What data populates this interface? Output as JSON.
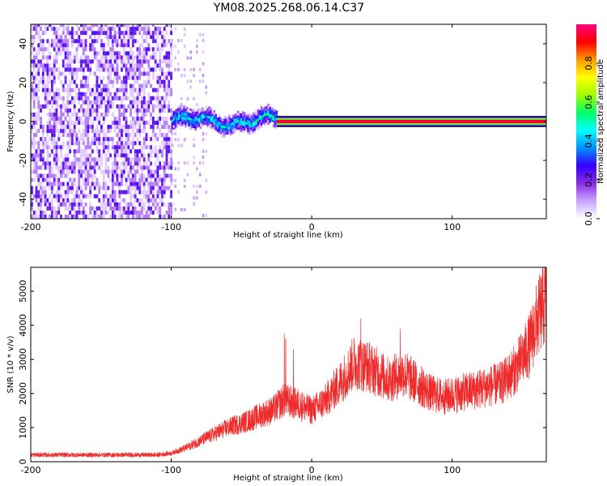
{
  "figure": {
    "title": "YM08.2025.268.06.14.C37"
  },
  "chart_data": [
    {
      "type": "heatmap",
      "panel": "spectrogram",
      "xlabel": "Height of straight line (km)",
      "ylabel": "Frequency (Hz)",
      "xlim": [
        -200,
        167
      ],
      "ylim": [
        -50,
        50
      ],
      "x_ticks": [
        "-200",
        "-100",
        "0",
        "100"
      ],
      "x_tick_values": [
        -200,
        -100,
        0,
        100
      ],
      "y_ticks": [
        "-40",
        "-20",
        "0",
        "20",
        "40"
      ],
      "y_tick_values": [
        -40,
        -20,
        0,
        20,
        40
      ],
      "colorbar": {
        "label": "Normalized spectral amplitude",
        "range": [
          0,
          1
        ],
        "ticks": [
          "0.0",
          "0.2",
          "0.4",
          "0.6",
          "0.8"
        ],
        "tick_values": [
          0.0,
          0.2,
          0.4,
          0.6,
          0.8
        ],
        "colormap": [
          "#ffffff",
          "#c9a6ff",
          "#8a2be2",
          "#3300ff",
          "#0090ff",
          "#00ffff",
          "#00ff66",
          "#a0ff00",
          "#ffff00",
          "#ff9900",
          "#ff0000",
          "#ff0080"
        ]
      },
      "regions": [
        {
          "name": "noise",
          "x": [
            -200,
            -100
          ],
          "amplitude": 0.2
        },
        {
          "name": "sparse",
          "x": [
            -100,
            -75
          ],
          "amplitude": 0.08
        },
        {
          "name": "wavy-signal",
          "x": [
            -100,
            -25
          ],
          "freq_center": 2,
          "amplitude": 0.35
        },
        {
          "name": "tone",
          "x": [
            -25,
            167
          ],
          "freq": 0,
          "amplitude": 0.95
        }
      ]
    },
    {
      "type": "line",
      "panel": "snr",
      "xlabel": "Height of straight line (km)",
      "ylabel": "SNR (10 * v/v)",
      "xlim": [
        -200,
        167
      ],
      "ylim": [
        0,
        5700
      ],
      "x_ticks": [
        "-200",
        "-100",
        "0",
        "100"
      ],
      "x_tick_values": [
        -200,
        -100,
        0,
        100
      ],
      "y_ticks": [
        "0",
        "1000",
        "2000",
        "3000",
        "4000",
        "5000"
      ],
      "y_tick_values": [
        0,
        1000,
        2000,
        3000,
        4000,
        5000
      ],
      "color": "#ee2c2c",
      "trend": {
        "x": [
          -200,
          -160,
          -110,
          -100,
          -90,
          -75,
          -60,
          -45,
          -35,
          -28,
          -20,
          -10,
          0,
          10,
          20,
          30,
          40,
          55,
          65,
          75,
          85,
          95,
          105,
          115,
          125,
          135,
          145,
          155,
          160,
          167
        ],
        "y": [
          200,
          200,
          200,
          250,
          400,
          700,
          1000,
          1200,
          1400,
          1500,
          1800,
          1700,
          1500,
          1800,
          2300,
          2900,
          2800,
          2400,
          2600,
          2300,
          2000,
          1900,
          2000,
          2100,
          2200,
          2300,
          2700,
          3400,
          4100,
          4800
        ]
      },
      "spikes": [
        {
          "x": -19.5,
          "y": 3750
        },
        {
          "x": -18.5,
          "y": 3600
        },
        {
          "x": -13,
          "y": 3300
        },
        {
          "x": 35,
          "y": 4200
        },
        {
          "x": 63,
          "y": 3900
        },
        {
          "x": 168,
          "y": 5500
        }
      ]
    }
  ]
}
